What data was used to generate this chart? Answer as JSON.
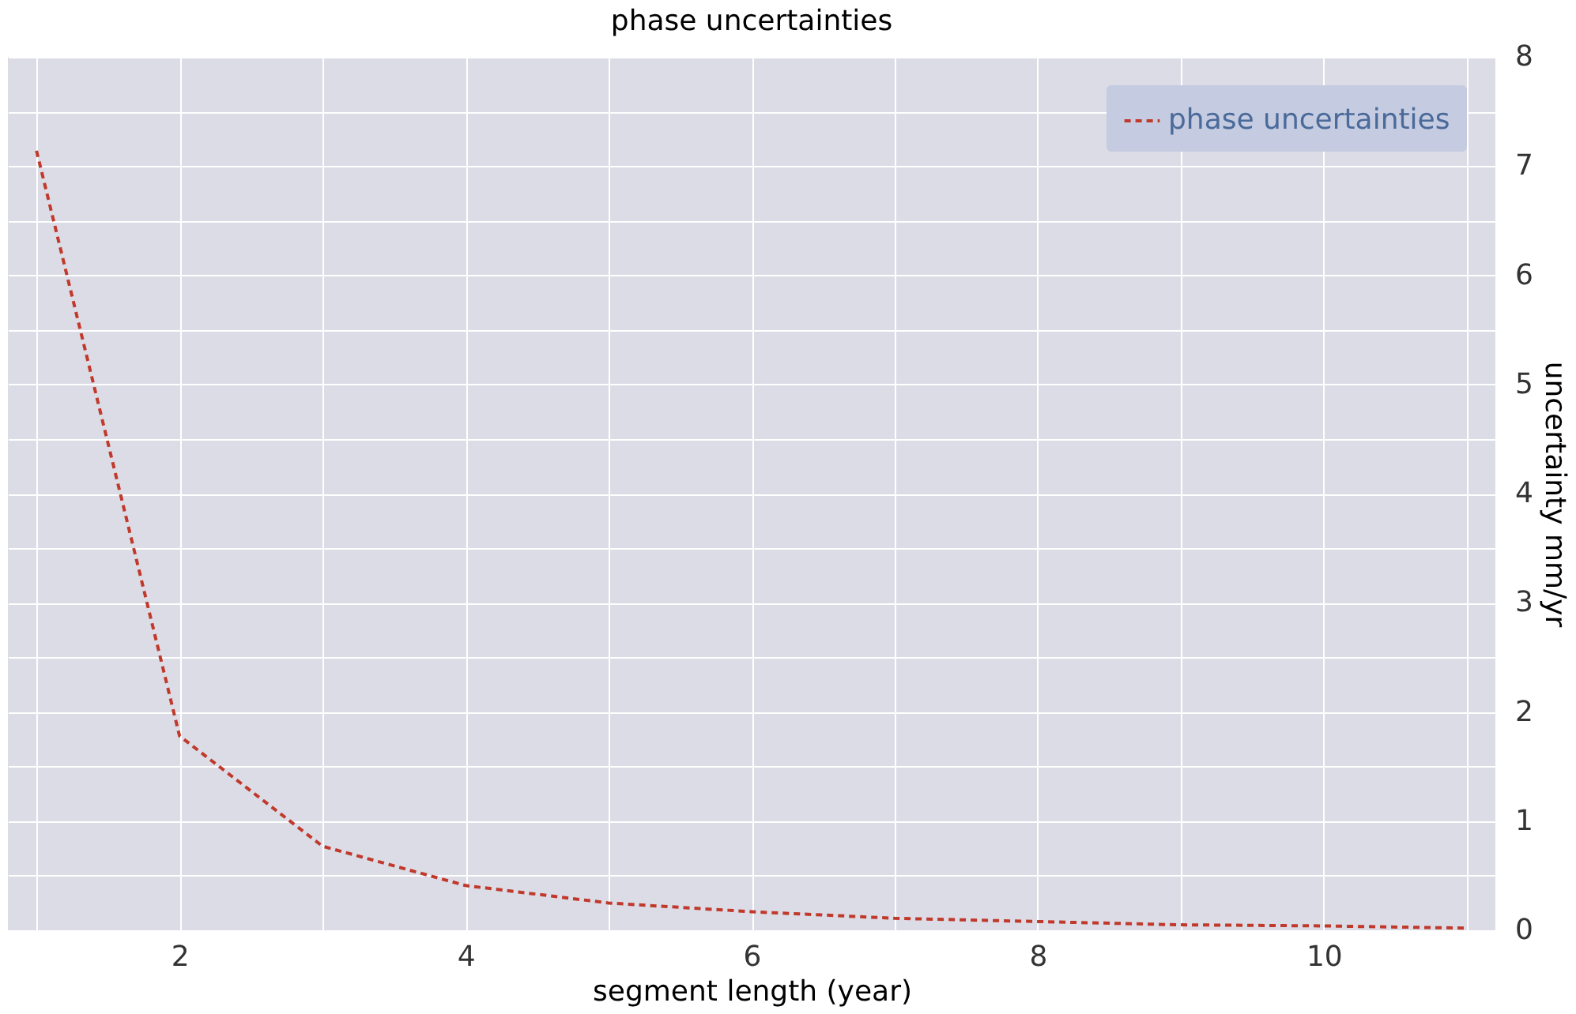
{
  "chart_data": {
    "type": "line",
    "title": "phase uncertainties",
    "xlabel": "segment length (year)",
    "ylabel": "uncertainty mm/yr",
    "x": [
      1,
      2,
      3,
      4,
      5,
      6,
      7,
      8,
      9,
      10,
      11
    ],
    "series": [
      {
        "name": "phase uncertainties",
        "color": "#c0392b",
        "values": [
          7.14,
          1.78,
          0.77,
          0.41,
          0.25,
          0.17,
          0.11,
          0.08,
          0.05,
          0.04,
          0.02
        ]
      }
    ],
    "xlim": [
      0.8,
      11.2
    ],
    "ylim": [
      0,
      8
    ],
    "xticks": [
      {
        "value": 1,
        "label": null
      },
      2,
      {
        "value": 3,
        "label": null
      },
      4,
      {
        "value": 5,
        "label": null
      },
      6,
      {
        "value": 7,
        "label": null
      },
      8,
      {
        "value": 9,
        "label": null
      },
      10,
      {
        "value": 11,
        "label": null
      }
    ],
    "yticks": [
      0,
      {
        "value": 0.5,
        "label": null
      },
      1,
      {
        "value": 1.5,
        "label": null
      },
      2,
      {
        "value": 2.5,
        "label": null
      },
      3,
      {
        "value": 3.5,
        "label": null
      },
      4,
      {
        "value": 4.5,
        "label": null
      },
      5,
      {
        "value": 5.5,
        "label": null
      },
      6,
      {
        "value": 6.5,
        "label": null
      },
      7,
      {
        "value": 7.5,
        "label": null
      },
      8
    ],
    "grid": true,
    "legend": "top right",
    "marker": "none",
    "line_style": "dashed"
  }
}
